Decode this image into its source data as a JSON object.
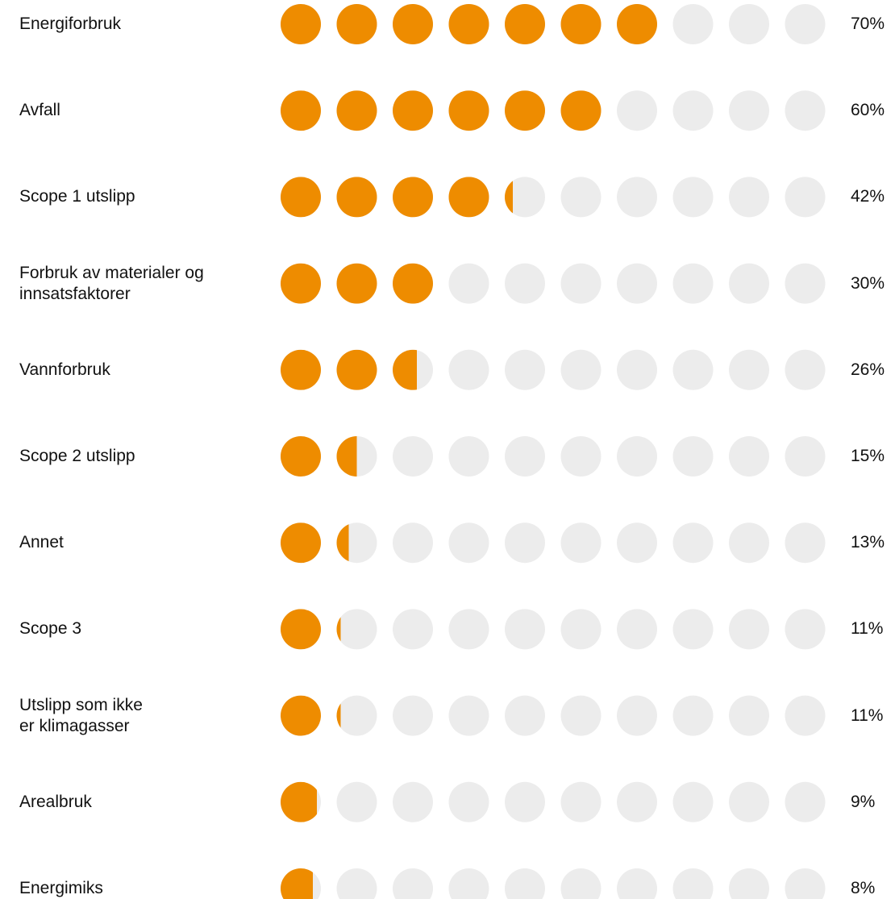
{
  "chart_data": {
    "type": "dot_pictogram",
    "categories": [
      "Energiforbruk",
      "Avfall",
      "Scope 1 utslipp",
      "Forbruk av materialer og\ninnsatsfaktorer",
      "Vannforbruk",
      "Scope 2 utslipp",
      "Annet",
      "Scope 3",
      "Utslipp som ikke\ner klimagasser",
      "Arealbruk",
      "Energimiks"
    ],
    "values": [
      70,
      60,
      42,
      30,
      26,
      15,
      13,
      11,
      11,
      9,
      8
    ],
    "value_labels": [
      "70%",
      "60%",
      "42%",
      "30%",
      "26%",
      "15%",
      "13%",
      "11%",
      "11%",
      "9%",
      "8%"
    ],
    "xlim": [
      0,
      100
    ],
    "color": "#ee8c00",
    "empty_color": "#ececec"
  }
}
